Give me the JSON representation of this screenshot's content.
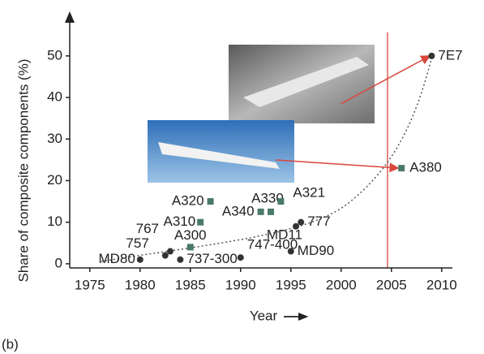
{
  "chart_data": {
    "type": "scatter",
    "xlabel": "Year",
    "ylabel": "Share of composite components (%)",
    "panel_label": "(b)",
    "xlim": [
      1973,
      2011
    ],
    "ylim": [
      -1,
      58
    ],
    "xticks": [
      1975,
      1980,
      1985,
      1990,
      1995,
      2000,
      2005,
      2010
    ],
    "yticks": [
      0,
      10,
      20,
      30,
      40,
      50
    ],
    "series": [
      {
        "marker": "circle",
        "color": "#333333",
        "labels": [
          "MD80",
          "757",
          "767",
          "737-300",
          "747-400",
          "MD90",
          "777",
          "MD11",
          "7E7"
        ],
        "x": [
          1980,
          1982.5,
          1983,
          1984,
          1990,
          1995,
          1996,
          1995.5,
          2009
        ],
        "values": [
          1,
          2,
          3,
          1,
          1.5,
          3,
          10,
          9,
          50
        ]
      },
      {
        "marker": "square",
        "color": "#4a7a68",
        "labels": [
          "A300",
          "A310",
          "A320",
          "A340",
          "A330",
          "A321",
          "A380"
        ],
        "x": [
          1985,
          1986,
          1987,
          1992,
          1993,
          1994,
          2006
        ],
        "values": [
          4,
          10,
          15,
          12.5,
          12.5,
          15,
          23
        ]
      }
    ]
  }
}
